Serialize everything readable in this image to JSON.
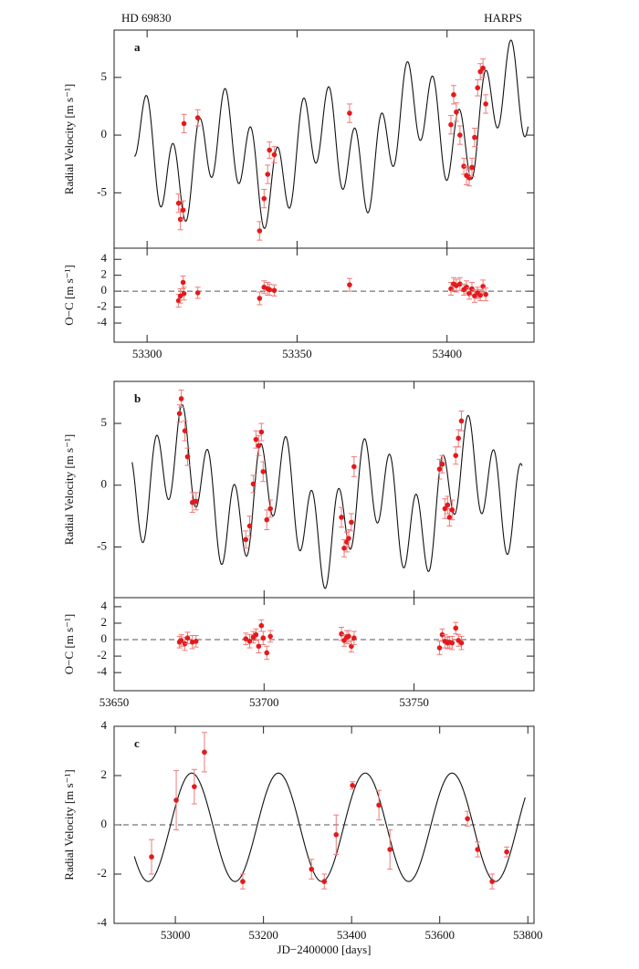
{
  "header": {
    "star": "HD 69830",
    "instrument": "HARPS"
  },
  "chart_data": [
    {
      "type": "scatter",
      "panel_label": "a",
      "ylabel": "Radial Velocity [m s⁻¹]",
      "xlim": [
        53289,
        53429
      ],
      "xticks": [
        53300,
        53350,
        53400
      ],
      "xtick_labels": false,
      "ylim": [
        -9.8,
        9.1
      ],
      "yticks": [
        -5,
        0,
        5
      ],
      "color": "#e31a1c",
      "error_color": "#f07a7a",
      "x": [
        53310.5,
        53311.1,
        53312.0,
        53312.3,
        53316.9,
        53337.5,
        53339.0,
        53340.2,
        53340.8,
        53342.4,
        53367.5,
        53401.3,
        53402.2,
        53403.1,
        53404.3,
        53405.6,
        53406.5,
        53407.4,
        53408.3,
        53409.2,
        53410.2,
        53411.1,
        53412.0,
        53412.9
      ],
      "values": [
        -5.9,
        -7.3,
        -6.5,
        1.0,
        1.5,
        -8.3,
        -5.5,
        -3.4,
        -1.3,
        -1.7,
        1.9,
        0.9,
        3.5,
        2.0,
        0.0,
        -2.7,
        -3.5,
        -3.7,
        -2.8,
        -0.2,
        4.1,
        5.5,
        5.8,
        2.7
      ],
      "errors": [
        0.8,
        0.9,
        0.8,
        0.8,
        0.7,
        0.8,
        0.8,
        0.8,
        0.7,
        0.7,
        0.8,
        0.8,
        0.8,
        0.8,
        0.8,
        0.7,
        0.8,
        0.7,
        0.8,
        0.8,
        0.7,
        0.7,
        0.8,
        0.8
      ],
      "model": {
        "x_range": [
          53295.7,
          53427
        ],
        "offset": 0,
        "terms": [
          {
            "period": 8.667,
            "amplitude": 3.5,
            "t_peak": 53672.7
          },
          {
            "period": 31.56,
            "amplitude": 2.7,
            "t_peak": 53672.7
          },
          {
            "period": 197,
            "amplitude": 2.2,
            "t_peak": 53234
          }
        ]
      }
    },
    {
      "type": "scatter",
      "ylabel": "O−C [m s⁻¹]",
      "xlim": [
        53289,
        53429
      ],
      "xticks": [
        53300,
        53350,
        53400
      ],
      "ylim": [
        -6.4,
        5.4
      ],
      "yticks": [
        -4,
        -2,
        0,
        2,
        4
      ],
      "zero_line": true,
      "color": "#e31a1c",
      "error_color": "#f07a7a",
      "x": [
        53310.5,
        53311.1,
        53312.0,
        53312.3,
        53316.9,
        53337.5,
        53339.0,
        53340.2,
        53340.8,
        53342.4,
        53367.5,
        53401.3,
        53402.2,
        53403.1,
        53404.3,
        53405.6,
        53406.5,
        53407.4,
        53408.3,
        53409.2,
        53410.2,
        53411.1,
        53412.0,
        53412.9
      ],
      "values": [
        -1.2,
        -0.6,
        1.1,
        -0.3,
        -0.2,
        -0.9,
        0.5,
        0.3,
        0.2,
        0.1,
        0.8,
        0.3,
        0.9,
        0.7,
        0.9,
        0.2,
        0.5,
        -0.3,
        0.3,
        -0.6,
        -0.2,
        -0.5,
        0.6,
        -0.4
      ],
      "errors": [
        0.8,
        0.9,
        0.8,
        0.8,
        0.7,
        0.8,
        0.8,
        0.8,
        0.7,
        0.7,
        0.8,
        0.8,
        0.8,
        0.8,
        0.8,
        0.7,
        0.8,
        0.7,
        0.8,
        0.8,
        0.7,
        0.7,
        0.8,
        0.8
      ]
    },
    {
      "type": "scatter",
      "panel_label": "b",
      "ylabel": "Radial Velocity [m s⁻¹]",
      "xlim": [
        53650,
        53790
      ],
      "xticks": [
        53650,
        53700,
        53750
      ],
      "xtick_labels": false,
      "ylim": [
        -9.1,
        8.4
      ],
      "yticks": [
        -5,
        0,
        5
      ],
      "color": "#e31a1c",
      "error_color": "#f07a7a",
      "x": [
        53671.8,
        53672.4,
        53673.6,
        53674.5,
        53676.1,
        53677.3,
        53693.9,
        53695.2,
        53696.4,
        53697.3,
        53698.2,
        53699.1,
        53699.7,
        53700.9,
        53702.1,
        53725.8,
        53726.7,
        53727.6,
        53728.2,
        53729.1,
        53730.0,
        53758.5,
        53759.4,
        53760.3,
        53761.2,
        53761.8,
        53762.7,
        53763.9,
        53764.8,
        53765.8
      ],
      "values": [
        5.8,
        7.0,
        4.4,
        2.3,
        -1.4,
        -1.3,
        -4.4,
        -3.3,
        0.1,
        3.7,
        3.2,
        4.3,
        1.1,
        -2.8,
        -1.9,
        -2.6,
        -5.1,
        -4.6,
        -4.3,
        -3.0,
        1.5,
        1.3,
        1.7,
        -1.9,
        -1.6,
        -2.6,
        -2.0,
        2.4,
        3.8,
        5.2
      ],
      "errors": [
        0.7,
        0.7,
        0.8,
        0.7,
        0.8,
        0.7,
        0.7,
        0.8,
        0.7,
        0.7,
        0.8,
        0.7,
        0.8,
        0.8,
        0.7,
        0.8,
        0.7,
        0.8,
        0.7,
        0.7,
        0.8,
        0.8,
        0.7,
        0.8,
        0.7,
        0.7,
        0.8,
        0.7,
        0.7,
        0.8
      ],
      "model": {
        "x_range": [
          53656,
          53786
        ],
        "offset": 0,
        "terms": [
          {
            "period": 8.667,
            "amplitude": 3.5,
            "t_peak": 53672.7
          },
          {
            "period": 31.56,
            "amplitude": 2.7,
            "t_peak": 53672.7
          },
          {
            "period": 197,
            "amplitude": 2.2,
            "t_peak": 53234
          }
        ]
      }
    },
    {
      "type": "scatter",
      "ylabel": "O−C [m s⁻¹]",
      "xlim": [
        53650,
        53790
      ],
      "xticks": [
        53650,
        53700,
        53750
      ],
      "ylim": [
        -6.2,
        5.1
      ],
      "yticks": [
        -4,
        -2,
        0,
        2,
        4
      ],
      "zero_line": true,
      "color": "#e31a1c",
      "error_color": "#f07a7a",
      "x": [
        53671.8,
        53672.4,
        53673.6,
        53674.5,
        53676.1,
        53677.3,
        53693.9,
        53695.2,
        53696.4,
        53697.3,
        53698.2,
        53699.1,
        53699.7,
        53700.9,
        53702.1,
        53725.8,
        53726.7,
        53727.6,
        53728.2,
        53729.1,
        53730.0,
        53758.5,
        53759.4,
        53760.3,
        53761.2,
        53761.8,
        53762.7,
        53763.9,
        53764.8,
        53765.8
      ],
      "values": [
        -0.3,
        -0.1,
        -0.5,
        0.2,
        -0.3,
        -0.2,
        0.1,
        -0.2,
        0.3,
        0.6,
        -0.8,
        1.7,
        0.2,
        -1.6,
        0.4,
        0.7,
        -0.1,
        0.3,
        0.4,
        -0.8,
        0.2,
        -1.0,
        0.6,
        -0.2,
        -0.4,
        -0.3,
        -0.4,
        1.4,
        -0.1,
        -0.4
      ],
      "errors": [
        0.7,
        0.7,
        0.8,
        0.7,
        0.8,
        0.7,
        0.7,
        0.8,
        0.7,
        0.7,
        0.8,
        0.7,
        0.8,
        0.8,
        0.7,
        0.8,
        0.7,
        0.8,
        0.7,
        0.7,
        0.8,
        0.8,
        0.7,
        0.8,
        0.7,
        0.7,
        0.8,
        0.7,
        0.7,
        0.8
      ]
    },
    {
      "type": "scatter",
      "panel_label": "c",
      "ylabel": "Radial Velocity [m s⁻¹]",
      "xlabel": "JD−2400000 [days]",
      "xlim": [
        52861,
        53814
      ],
      "xticks": [
        53000,
        53200,
        53400,
        53600,
        53800
      ],
      "ylim": [
        -4,
        4
      ],
      "yticks": [
        -4,
        -2,
        0,
        2,
        4
      ],
      "zero_line": true,
      "color": "#e31a1c",
      "error_color": "#f07a7a",
      "x": [
        52946,
        53002,
        53043,
        53066,
        53153,
        53309,
        53338,
        53365,
        53402,
        53462,
        53487,
        53663,
        53686,
        53719,
        53752
      ],
      "values": [
        -1.3,
        1.0,
        1.55,
        2.95,
        -2.3,
        -1.8,
        -2.3,
        -0.4,
        1.6,
        0.8,
        -1.0,
        0.25,
        -1.0,
        -2.3,
        -1.1
      ],
      "errors": [
        0.7,
        1.2,
        0.7,
        0.8,
        0.3,
        0.4,
        0.3,
        0.8,
        0.15,
        0.6,
        0.8,
        0.3,
        0.3,
        0.3,
        0.2
      ],
      "model": {
        "x_range": [
          52907,
          53794
        ],
        "offset": -0.1,
        "terms": [
          {
            "period": 197,
            "amplitude": 2.2,
            "t_peak": 53234
          }
        ]
      }
    }
  ]
}
